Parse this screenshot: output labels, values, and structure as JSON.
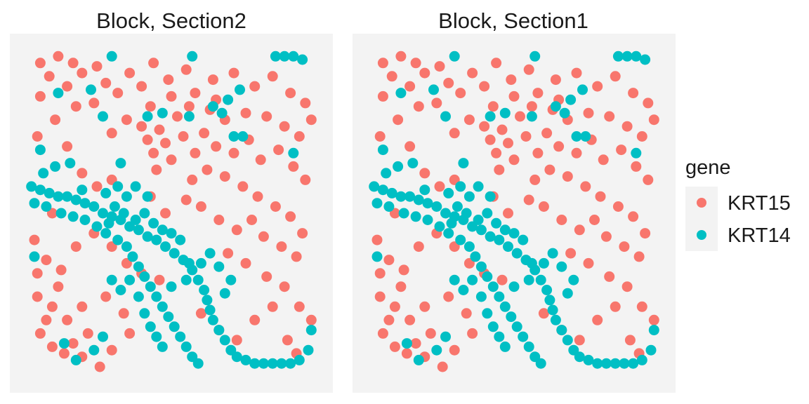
{
  "chart_data": {
    "type": "scatter",
    "facets": [
      "Block, Section2",
      "Block, Section1"
    ],
    "legend": {
      "title": "gene",
      "placement": "right",
      "entries": [
        {
          "label": "KRT15",
          "color": "#F8766D"
        },
        {
          "label": "KRT14",
          "color": "#00BFC4"
        }
      ]
    },
    "xlim": [
      0,
      1
    ],
    "ylim": [
      0,
      1
    ],
    "grid": false,
    "axes_visible": false,
    "series": [
      {
        "name": "KRT15",
        "color": "#F8766D",
        "points": [
          [
            0.06,
            0.95
          ],
          [
            0.12,
            0.97
          ],
          [
            0.17,
            0.95
          ],
          [
            0.25,
            0.94
          ],
          [
            0.44,
            0.95
          ],
          [
            0.09,
            0.91
          ],
          [
            0.15,
            0.88
          ],
          [
            0.2,
            0.92
          ],
          [
            0.28,
            0.89
          ],
          [
            0.24,
            0.83
          ],
          [
            0.32,
            0.86
          ],
          [
            0.36,
            0.92
          ],
          [
            0.4,
            0.88
          ],
          [
            0.43,
            0.82
          ],
          [
            0.49,
            0.9
          ],
          [
            0.55,
            0.93
          ],
          [
            0.58,
            0.86
          ],
          [
            0.64,
            0.9
          ],
          [
            0.71,
            0.92
          ],
          [
            0.78,
            0.88
          ],
          [
            0.84,
            0.91
          ],
          [
            0.9,
            0.86
          ],
          [
            0.95,
            0.83
          ],
          [
            0.75,
            0.8
          ],
          [
            0.68,
            0.78
          ],
          [
            0.63,
            0.81
          ],
          [
            0.82,
            0.79
          ],
          [
            0.88,
            0.76
          ],
          [
            0.93,
            0.73
          ],
          [
            0.97,
            0.78
          ],
          [
            0.06,
            0.85
          ],
          [
            0.11,
            0.78
          ],
          [
            0.18,
            0.82
          ],
          [
            0.05,
            0.73
          ],
          [
            0.15,
            0.7
          ],
          [
            0.4,
            0.76
          ],
          [
            0.42,
            0.72
          ],
          [
            0.44,
            0.68
          ],
          [
            0.46,
            0.75
          ],
          [
            0.48,
            0.71
          ],
          [
            0.5,
            0.66
          ],
          [
            0.45,
            0.63
          ],
          [
            0.52,
            0.79
          ],
          [
            0.54,
            0.73
          ],
          [
            0.58,
            0.68
          ],
          [
            0.61,
            0.74
          ],
          [
            0.65,
            0.7
          ],
          [
            0.71,
            0.68
          ],
          [
            0.76,
            0.72
          ],
          [
            0.8,
            0.66
          ],
          [
            0.86,
            0.69
          ],
          [
            0.91,
            0.64
          ],
          [
            0.95,
            0.6
          ],
          [
            0.57,
            0.6
          ],
          [
            0.62,
            0.63
          ],
          [
            0.68,
            0.61
          ],
          [
            0.74,
            0.58
          ],
          [
            0.79,
            0.55
          ],
          [
            0.85,
            0.52
          ],
          [
            0.9,
            0.49
          ],
          [
            0.94,
            0.44
          ],
          [
            0.43,
            0.55
          ],
          [
            0.48,
            0.5
          ],
          [
            0.55,
            0.54
          ],
          [
            0.6,
            0.52
          ],
          [
            0.66,
            0.48
          ],
          [
            0.72,
            0.45
          ],
          [
            0.77,
            0.48
          ],
          [
            0.81,
            0.43
          ],
          [
            0.87,
            0.4
          ],
          [
            0.92,
            0.37
          ],
          [
            0.69,
            0.38
          ],
          [
            0.75,
            0.35
          ],
          [
            0.82,
            0.31
          ],
          [
            0.88,
            0.28
          ],
          [
            0.93,
            0.22
          ],
          [
            0.97,
            0.18
          ],
          [
            0.25,
            0.58
          ],
          [
            0.3,
            0.6
          ],
          [
            0.2,
            0.62
          ],
          [
            0.1,
            0.5
          ],
          [
            0.04,
            0.42
          ],
          [
            0.08,
            0.36
          ],
          [
            0.13,
            0.33
          ],
          [
            0.18,
            0.4
          ],
          [
            0.24,
            0.44
          ],
          [
            0.3,
            0.4
          ],
          [
            0.35,
            0.35
          ],
          [
            0.4,
            0.32
          ],
          [
            0.46,
            0.3
          ],
          [
            0.05,
            0.25
          ],
          [
            0.1,
            0.22
          ],
          [
            0.15,
            0.18
          ],
          [
            0.2,
            0.22
          ],
          [
            0.28,
            0.25
          ],
          [
            0.34,
            0.2
          ],
          [
            0.06,
            0.14
          ],
          [
            0.1,
            0.1
          ],
          [
            0.14,
            0.08
          ],
          [
            0.17,
            0.11
          ],
          [
            0.2,
            0.07
          ],
          [
            0.26,
            0.04
          ],
          [
            0.3,
            0.09
          ],
          [
            0.36,
            0.14
          ],
          [
            0.6,
            0.2
          ],
          [
            0.66,
            0.15
          ],
          [
            0.72,
            0.12
          ],
          [
            0.78,
            0.18
          ],
          [
            0.84,
            0.22
          ],
          [
            0.89,
            0.12
          ],
          [
            0.92,
            0.08
          ],
          [
            0.22,
            0.14
          ],
          [
            0.08,
            0.18
          ],
          [
            0.05,
            0.32
          ],
          [
            0.12,
            0.28
          ],
          [
            0.35,
            0.78
          ],
          [
            0.3,
            0.74
          ],
          [
            0.5,
            0.85
          ],
          [
            0.56,
            0.82
          ],
          [
            0.65,
            0.84
          ]
        ]
      },
      {
        "name": "KRT14",
        "color": "#00BFC4",
        "points": [
          [
            0.85,
            0.97
          ],
          [
            0.88,
            0.97
          ],
          [
            0.91,
            0.97
          ],
          [
            0.94,
            0.96
          ],
          [
            0.3,
            0.97
          ],
          [
            0.57,
            0.97
          ],
          [
            0.23,
            0.87
          ],
          [
            0.12,
            0.86
          ],
          [
            0.27,
            0.79
          ],
          [
            0.42,
            0.79
          ],
          [
            0.47,
            0.8
          ],
          [
            0.56,
            0.79
          ],
          [
            0.64,
            0.82
          ],
          [
            0.67,
            0.8
          ],
          [
            0.69,
            0.84
          ],
          [
            0.73,
            0.87
          ],
          [
            0.71,
            0.73
          ],
          [
            0.74,
            0.73
          ],
          [
            0.91,
            0.68
          ],
          [
            0.06,
            0.69
          ],
          [
            0.11,
            0.64
          ],
          [
            0.16,
            0.65
          ],
          [
            0.33,
            0.65
          ],
          [
            0.07,
            0.62
          ],
          [
            0.03,
            0.58
          ],
          [
            0.06,
            0.57
          ],
          [
            0.09,
            0.56
          ],
          [
            0.12,
            0.55
          ],
          [
            0.15,
            0.55
          ],
          [
            0.18,
            0.54
          ],
          [
            0.21,
            0.53
          ],
          [
            0.24,
            0.52
          ],
          [
            0.27,
            0.5
          ],
          [
            0.3,
            0.49
          ],
          [
            0.33,
            0.48
          ],
          [
            0.36,
            0.46
          ],
          [
            0.39,
            0.45
          ],
          [
            0.42,
            0.43
          ],
          [
            0.45,
            0.42
          ],
          [
            0.48,
            0.4
          ],
          [
            0.51,
            0.38
          ],
          [
            0.54,
            0.36
          ],
          [
            0.57,
            0.33
          ],
          [
            0.59,
            0.3
          ],
          [
            0.61,
            0.27
          ],
          [
            0.62,
            0.24
          ],
          [
            0.63,
            0.21
          ],
          [
            0.64,
            0.18
          ],
          [
            0.04,
            0.53
          ],
          [
            0.08,
            0.52
          ],
          [
            0.13,
            0.5
          ],
          [
            0.17,
            0.49
          ],
          [
            0.21,
            0.48
          ],
          [
            0.25,
            0.46
          ],
          [
            0.28,
            0.44
          ],
          [
            0.32,
            0.42
          ],
          [
            0.35,
            0.4
          ],
          [
            0.37,
            0.37
          ],
          [
            0.39,
            0.34
          ],
          [
            0.41,
            0.31
          ],
          [
            0.43,
            0.28
          ],
          [
            0.45,
            0.25
          ],
          [
            0.47,
            0.22
          ],
          [
            0.49,
            0.19
          ],
          [
            0.51,
            0.16
          ],
          [
            0.53,
            0.13
          ],
          [
            0.55,
            0.1
          ],
          [
            0.57,
            0.07
          ],
          [
            0.59,
            0.05
          ],
          [
            0.55,
            0.3
          ],
          [
            0.56,
            0.35
          ],
          [
            0.5,
            0.28
          ],
          [
            0.66,
            0.15
          ],
          [
            0.68,
            0.12
          ],
          [
            0.7,
            0.09
          ],
          [
            0.72,
            0.07
          ],
          [
            0.75,
            0.06
          ],
          [
            0.78,
            0.05
          ],
          [
            0.81,
            0.05
          ],
          [
            0.84,
            0.05
          ],
          [
            0.87,
            0.05
          ],
          [
            0.9,
            0.05
          ],
          [
            0.93,
            0.06
          ],
          [
            0.96,
            0.09
          ],
          [
            0.97,
            0.15
          ],
          [
            0.31,
            0.52
          ],
          [
            0.34,
            0.5
          ],
          [
            0.29,
            0.47
          ],
          [
            0.38,
            0.48
          ],
          [
            0.41,
            0.5
          ],
          [
            0.44,
            0.47
          ],
          [
            0.47,
            0.45
          ],
          [
            0.5,
            0.44
          ],
          [
            0.53,
            0.42
          ],
          [
            0.36,
            0.3
          ],
          [
            0.33,
            0.27
          ],
          [
            0.3,
            0.3
          ],
          [
            0.39,
            0.25
          ],
          [
            0.41,
            0.2
          ],
          [
            0.43,
            0.16
          ],
          [
            0.45,
            0.13
          ],
          [
            0.47,
            0.1
          ],
          [
            0.6,
            0.35
          ],
          [
            0.63,
            0.38
          ],
          [
            0.66,
            0.34
          ],
          [
            0.7,
            0.3
          ],
          [
            0.68,
            0.26
          ],
          [
            0.04,
            0.37
          ],
          [
            0.14,
            0.11
          ],
          [
            0.18,
            0.06
          ],
          [
            0.24,
            0.09
          ],
          [
            0.27,
            0.13
          ],
          [
            0.38,
            0.58
          ],
          [
            0.42,
            0.55
          ],
          [
            0.35,
            0.55
          ],
          [
            0.32,
            0.58
          ],
          [
            0.28,
            0.56
          ],
          [
            0.2,
            0.57
          ]
        ]
      }
    ]
  }
}
